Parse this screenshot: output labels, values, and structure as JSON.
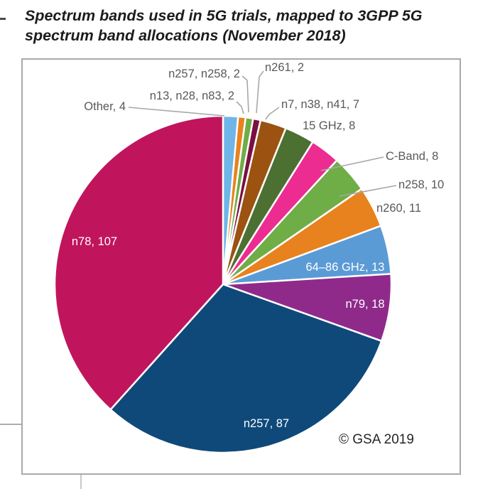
{
  "page": {
    "title_line1": "Spectrum bands used in 5G trials, mapped to 3GPP 5G",
    "title_line2": "spectrum band allocations (November 2018)",
    "copyright": "© GSA 2019"
  },
  "chart_data": {
    "type": "pie",
    "title": "Spectrum bands used in 5G trials, mapped to 3GPP 5G spectrum band allocations (November 2018)",
    "start_angle_deg": 0,
    "direction": "clockwise",
    "total": 279,
    "label_format": "{label}, {value}",
    "outside_label_color": "#595959",
    "inside_label_color": "#FFFFFF",
    "leader_line_color": "#A8A8A8",
    "slices": [
      {
        "label": "Other",
        "value": 4,
        "color": "#6FB5E8"
      },
      {
        "label": "n13, n28, n83",
        "value": 2,
        "color": "#E8821E"
      },
      {
        "label": "n257, n258",
        "value": 2,
        "color": "#6FAD47"
      },
      {
        "label": "n261",
        "value": 2,
        "color": "#7A0F42"
      },
      {
        "label": "n7, n38, n41",
        "value": 7,
        "color": "#9C5210"
      },
      {
        "label": "15 GHz",
        "value": 8,
        "color": "#4C7032"
      },
      {
        "label": "C-Band",
        "value": 8,
        "color": "#EC2C90"
      },
      {
        "label": "n258",
        "value": 10,
        "color": "#6FAD47"
      },
      {
        "label": "n260",
        "value": 11,
        "color": "#E8821E"
      },
      {
        "label": "64–86 GHz",
        "value": 13,
        "color": "#5B9BD5"
      },
      {
        "label": "n79",
        "value": 18,
        "color": "#8F2A8B"
      },
      {
        "label": "n257",
        "value": 87,
        "color": "#0F4979"
      },
      {
        "label": "n78",
        "value": 107,
        "color": "#C0155C"
      }
    ]
  }
}
